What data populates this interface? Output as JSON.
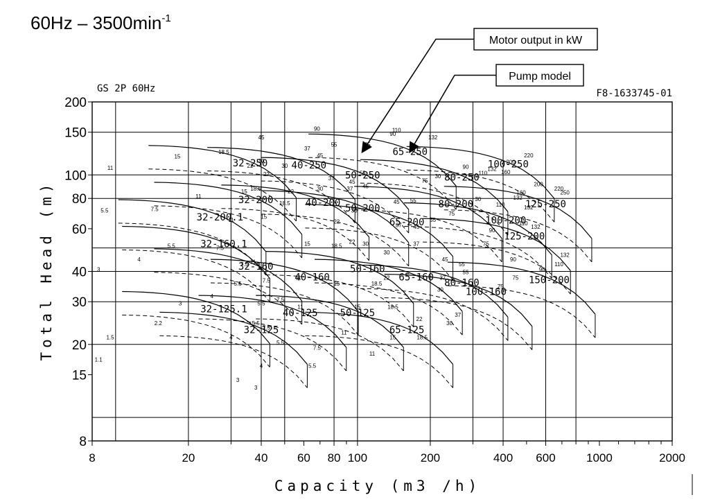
{
  "title": {
    "main": "60Hz – 3500min",
    "exp": "-1"
  },
  "chart_data": {
    "type": "line",
    "chart_label": "GS 2P 60Hz",
    "drawing_number": "F8-1633745-01",
    "xlabel": "Capacity (m3 /h)",
    "ylabel": "Total Head (m)",
    "xscale": "log",
    "yscale": "log",
    "xlim": [
      8,
      2000
    ],
    "ylim": [
      8,
      200
    ],
    "grid": true,
    "x_ticks": [
      {
        "v": 8,
        "l": "8"
      },
      {
        "v": 20,
        "l": "20"
      },
      {
        "v": 40,
        "l": "40"
      },
      {
        "v": 60,
        "l": "60"
      },
      {
        "v": 80,
        "l": "80"
      },
      {
        "v": 100,
        "l": "100"
      },
      {
        "v": 200,
        "l": "200"
      },
      {
        "v": 400,
        "l": "400"
      },
      {
        "v": 600,
        "l": "600"
      },
      {
        "v": 1000,
        "l": "1000"
      },
      {
        "v": 2000,
        "l": "2000"
      }
    ],
    "y_ticks": [
      {
        "v": 8,
        "l": "8"
      },
      {
        "v": 15,
        "l": "15"
      },
      {
        "v": 20,
        "l": "20"
      },
      {
        "v": 30,
        "l": "30"
      },
      {
        "v": 40,
        "l": "40"
      },
      {
        "v": 60,
        "l": "60"
      },
      {
        "v": 80,
        "l": "80"
      },
      {
        "v": 100,
        "l": "100"
      },
      {
        "v": 150,
        "l": "150"
      },
      {
        "v": 200,
        "l": "200"
      }
    ],
    "x_grid": [
      10,
      20,
      30,
      40,
      50,
      80,
      100,
      200,
      300,
      400,
      600,
      800
    ],
    "y_grid": [
      10,
      20,
      30,
      40,
      50,
      80,
      100,
      150,
      200
    ],
    "annotations": [
      {
        "text": "Motor output in kW",
        "target": [
          105,
          125
        ]
      },
      {
        "text": "Pump model",
        "target": [
          165,
          125
        ]
      }
    ],
    "pump_models": [
      {
        "label": "32-125.1",
        "x": 28,
        "y": 28
      },
      {
        "label": "32-125",
        "x": 40,
        "y": 23
      },
      {
        "label": "32-160.1",
        "x": 28,
        "y": 52
      },
      {
        "label": "32-160",
        "x": 38,
        "y": 42
      },
      {
        "label": "32-200.1",
        "x": 27,
        "y": 67
      },
      {
        "label": "32-200",
        "x": 38,
        "y": 79
      },
      {
        "label": "32-250",
        "x": 36,
        "y": 112
      },
      {
        "label": "40-125",
        "x": 58,
        "y": 27
      },
      {
        "label": "40-160",
        "x": 65,
        "y": 38
      },
      {
        "label": "40-200",
        "x": 72,
        "y": 77
      },
      {
        "label": "40-250",
        "x": 63,
        "y": 110
      },
      {
        "label": "50-125",
        "x": 100,
        "y": 27
      },
      {
        "label": "50-160",
        "x": 110,
        "y": 41
      },
      {
        "label": "50-200",
        "x": 105,
        "y": 73
      },
      {
        "label": "50-250",
        "x": 105,
        "y": 100
      },
      {
        "label": "65-125",
        "x": 160,
        "y": 23
      },
      {
        "label": "65-160",
        "x": 175,
        "y": 38
      },
      {
        "label": "65-200",
        "x": 160,
        "y": 64
      },
      {
        "label": "65-250",
        "x": 165,
        "y": 125
      },
      {
        "label": "80-160",
        "x": 270,
        "y": 36
      },
      {
        "label": "80-200",
        "x": 255,
        "y": 76
      },
      {
        "label": "80-250",
        "x": 270,
        "y": 98
      },
      {
        "label": "100-160",
        "x": 340,
        "y": 33
      },
      {
        "label": "100-200",
        "x": 410,
        "y": 65
      },
      {
        "label": "100-250",
        "x": 420,
        "y": 111
      },
      {
        "label": "125-200",
        "x": 490,
        "y": 56
      },
      {
        "label": "125-250",
        "x": 600,
        "y": 76
      },
      {
        "label": "150-200",
        "x": 620,
        "y": 37
      }
    ],
    "motor_kw_labels": [
      {
        "t": "1.1",
        "x": 8.5,
        "y": 17
      },
      {
        "t": "1.5",
        "x": 9.5,
        "y": 21
      },
      {
        "t": "2.2",
        "x": 15,
        "y": 24
      },
      {
        "t": "3",
        "x": 8.5,
        "y": 40
      },
      {
        "t": "3",
        "x": 18.5,
        "y": 29
      },
      {
        "t": "4",
        "x": 12.5,
        "y": 44
      },
      {
        "t": "4",
        "x": 25,
        "y": 31
      },
      {
        "t": "4",
        "x": 30,
        "y": 21
      },
      {
        "t": "4",
        "x": 40,
        "y": 16
      },
      {
        "t": "3",
        "x": 32,
        "y": 14
      },
      {
        "t": "3",
        "x": 38,
        "y": 13
      },
      {
        "t": "5.5",
        "x": 9,
        "y": 70
      },
      {
        "t": "5.5",
        "x": 17,
        "y": 50
      },
      {
        "t": "5.5",
        "x": 32,
        "y": 35
      },
      {
        "t": "5.5",
        "x": 40,
        "y": 29
      },
      {
        "t": "5.5",
        "x": 38,
        "y": 24
      },
      {
        "t": "5.5",
        "x": 48,
        "y": 20
      },
      {
        "t": "5.5",
        "x": 65,
        "y": 16
      },
      {
        "t": "7.5",
        "x": 14.5,
        "y": 71
      },
      {
        "t": "7.5",
        "x": 27,
        "y": 49
      },
      {
        "t": "7.5",
        "x": 34,
        "y": 42
      },
      {
        "t": "7.5",
        "x": 42,
        "y": 36
      },
      {
        "t": "7.5",
        "x": 48,
        "y": 30
      },
      {
        "t": "7.5",
        "x": 42,
        "y": 23
      },
      {
        "t": "7.5",
        "x": 68,
        "y": 19
      },
      {
        "t": "11",
        "x": 9.5,
        "y": 105
      },
      {
        "t": "11",
        "x": 22,
        "y": 80
      },
      {
        "t": "11",
        "x": 30,
        "y": 64
      },
      {
        "t": "11",
        "x": 37,
        "y": 43
      },
      {
        "t": "11",
        "x": 57,
        "y": 37
      },
      {
        "t": "11",
        "x": 58,
        "y": 28
      },
      {
        "t": "11",
        "x": 88,
        "y": 22
      },
      {
        "t": "11",
        "x": 115,
        "y": 18
      },
      {
        "t": "15",
        "x": 18,
        "y": 117
      },
      {
        "t": "15",
        "x": 34,
        "y": 84
      },
      {
        "t": "15",
        "x": 41,
        "y": 66
      },
      {
        "t": "15",
        "x": 62,
        "y": 51
      },
      {
        "t": "15",
        "x": 82,
        "y": 35
      },
      {
        "t": "15",
        "x": 100,
        "y": 28
      },
      {
        "t": "15",
        "x": 140,
        "y": 21
      },
      {
        "t": "18.5",
        "x": 28,
        "y": 122
      },
      {
        "t": "18.5",
        "x": 38,
        "y": 86
      },
      {
        "t": "18.5",
        "x": 50,
        "y": 75
      },
      {
        "t": "18.5",
        "x": 82,
        "y": 50
      },
      {
        "t": "18.5",
        "x": 120,
        "y": 35
      },
      {
        "t": "18.5",
        "x": 140,
        "y": 28
      },
      {
        "t": "18.5",
        "x": 185,
        "y": 21
      },
      {
        "t": "22",
        "x": 36,
        "y": 107
      },
      {
        "t": "22",
        "x": 42,
        "y": 99
      },
      {
        "t": "22",
        "x": 53,
        "y": 84
      },
      {
        "t": "22",
        "x": 82,
        "y": 63
      },
      {
        "t": "22",
        "x": 95,
        "y": 52
      },
      {
        "t": "22",
        "x": 132,
        "y": 37
      },
      {
        "t": "22",
        "x": 180,
        "y": 25
      },
      {
        "t": "30",
        "x": 40,
        "y": 112
      },
      {
        "t": "30",
        "x": 50,
        "y": 107
      },
      {
        "t": "30",
        "x": 70,
        "y": 86
      },
      {
        "t": "30",
        "x": 97,
        "y": 70
      },
      {
        "t": "30",
        "x": 108,
        "y": 51
      },
      {
        "t": "30",
        "x": 132,
        "y": 47
      },
      {
        "t": "30",
        "x": 220,
        "y": 33
      },
      {
        "t": "30",
        "x": 240,
        "y": 24
      },
      {
        "t": "30",
        "x": 215,
        "y": 97
      },
      {
        "t": "30",
        "x": 315,
        "y": 78
      },
      {
        "t": "37",
        "x": 62,
        "y": 126
      },
      {
        "t": "37",
        "x": 78,
        "y": 95
      },
      {
        "t": "37",
        "x": 93,
        "y": 86
      },
      {
        "t": "37",
        "x": 148,
        "y": 61
      },
      {
        "t": "37",
        "x": 175,
        "y": 51
      },
      {
        "t": "37",
        "x": 225,
        "y": 37
      },
      {
        "t": "37",
        "x": 260,
        "y": 26
      },
      {
        "t": "45",
        "x": 40,
        "y": 140
      },
      {
        "t": "45",
        "x": 70,
        "y": 118
      },
      {
        "t": "45",
        "x": 95,
        "y": 92
      },
      {
        "t": "45",
        "x": 108,
        "y": 88
      },
      {
        "t": "45",
        "x": 145,
        "y": 76
      },
      {
        "t": "45",
        "x": 175,
        "y": 60
      },
      {
        "t": "45",
        "x": 230,
        "y": 44
      },
      {
        "t": "55",
        "x": 80,
        "y": 131
      },
      {
        "t": "55",
        "x": 105,
        "y": 100
      },
      {
        "t": "55",
        "x": 170,
        "y": 77
      },
      {
        "t": "55",
        "x": 205,
        "y": 64
      },
      {
        "t": "55",
        "x": 280,
        "y": 39
      },
      {
        "t": "55",
        "x": 270,
        "y": 42
      },
      {
        "t": "75",
        "x": 110,
        "y": 131
      },
      {
        "t": "75",
        "x": 190,
        "y": 93
      },
      {
        "t": "75",
        "x": 245,
        "y": 68
      },
      {
        "t": "75",
        "x": 340,
        "y": 51
      },
      {
        "t": "75",
        "x": 390,
        "y": 34
      },
      {
        "t": "75",
        "x": 450,
        "y": 37
      },
      {
        "t": "90",
        "x": 140,
        "y": 145
      },
      {
        "t": "90",
        "x": 280,
        "y": 106
      },
      {
        "t": "90",
        "x": 360,
        "y": 58
      },
      {
        "t": "90",
        "x": 440,
        "y": 44
      },
      {
        "t": "90",
        "x": 580,
        "y": 40
      },
      {
        "t": "90",
        "x": 68,
        "y": 152
      },
      {
        "t": "110",
        "x": 145,
        "y": 150
      },
      {
        "t": "110",
        "x": 330,
        "y": 100
      },
      {
        "t": "110",
        "x": 390,
        "y": 74
      },
      {
        "t": "110",
        "x": 485,
        "y": 62
      },
      {
        "t": "110",
        "x": 680,
        "y": 42
      },
      {
        "t": "132",
        "x": 205,
        "y": 140
      },
      {
        "t": "132",
        "x": 360,
        "y": 104
      },
      {
        "t": "132",
        "x": 460,
        "y": 79
      },
      {
        "t": "132",
        "x": 510,
        "y": 72
      },
      {
        "t": "132",
        "x": 545,
        "y": 60
      },
      {
        "t": "132",
        "x": 720,
        "y": 46
      },
      {
        "t": "160",
        "x": 410,
        "y": 101
      },
      {
        "t": "160",
        "x": 475,
        "y": 83
      },
      {
        "t": "200",
        "x": 430,
        "y": 111
      },
      {
        "t": "200",
        "x": 560,
        "y": 90
      },
      {
        "t": "220",
        "x": 510,
        "y": 118
      },
      {
        "t": "220",
        "x": 680,
        "y": 86
      },
      {
        "t": "250",
        "x": 720,
        "y": 83
      }
    ]
  }
}
